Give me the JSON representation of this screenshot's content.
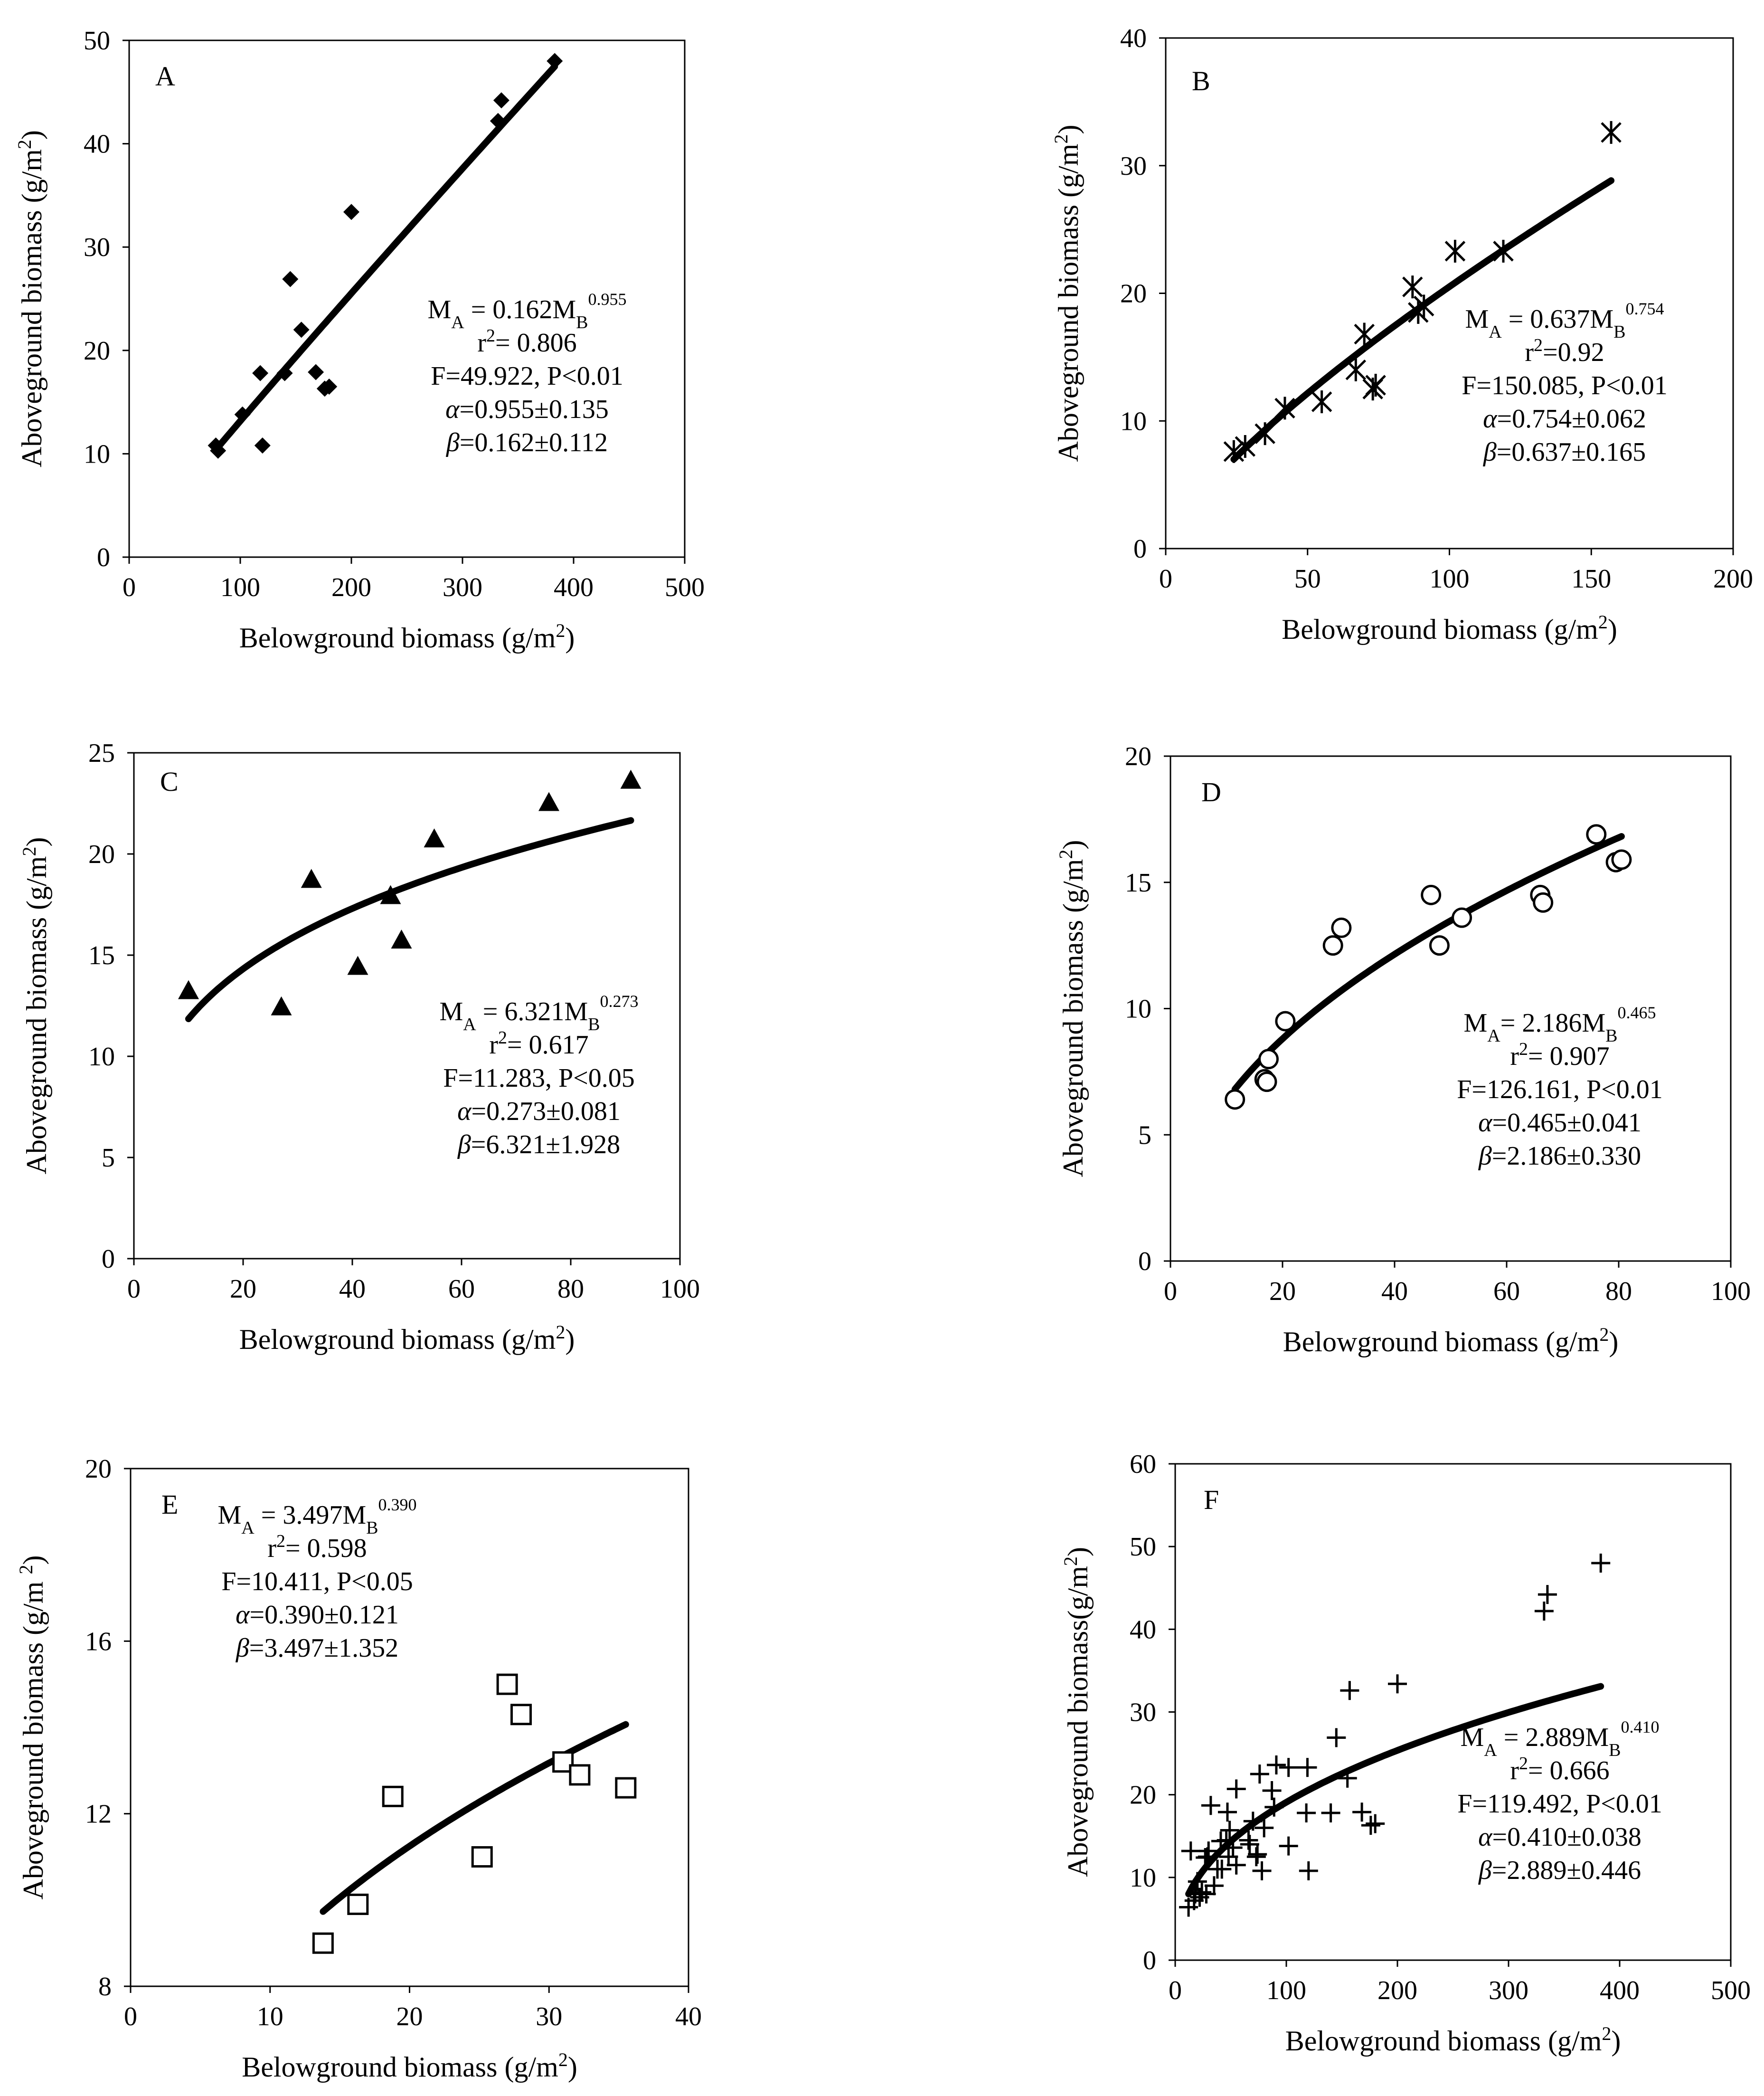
{
  "chart_data": [
    {
      "id": "A",
      "type": "scatter",
      "marker": "diamond",
      "xlabel": "Belowground biomass (g/m2)",
      "xlabel_main": "Belowground biomass (g/m",
      "xlabel_sup": "2",
      "xlabel_end": ")",
      "ylabel": "Aboveground biomass (g/m2)",
      "ylabel_main": "Aboveground biomass (g/m",
      "ylabel_sup": "2",
      "ylabel_end": ")",
      "xlim": [
        0,
        500
      ],
      "ylim": [
        0,
        50
      ],
      "xticks": [
        0,
        100,
        200,
        300,
        400,
        500
      ],
      "yticks": [
        0,
        10,
        20,
        30,
        40,
        50
      ],
      "points": [
        [
          78,
          10.8
        ],
        [
          80,
          10.3
        ],
        [
          102,
          13.8
        ],
        [
          118,
          17.8
        ],
        [
          120,
          10.8
        ],
        [
          140,
          17.8
        ],
        [
          145,
          26.9
        ],
        [
          155,
          22.0
        ],
        [
          168,
          17.9
        ],
        [
          176,
          16.3
        ],
        [
          180,
          16.5
        ],
        [
          200,
          33.4
        ],
        [
          332,
          42.2
        ],
        [
          335,
          44.2
        ],
        [
          383,
          48.0
        ]
      ],
      "fit": {
        "a": 0.162,
        "b": 0.955,
        "x_range": [
          78,
          383
        ]
      },
      "equation": {
        "ma": "M",
        "ma_sub": "A",
        "eq": " = 0.162M",
        "mb_sub": "B",
        "exp": "0.955"
      },
      "stats": [
        "= 0.806",
        "F=49.922, P<0.01",
        "=0.955±0.135",
        "=0.162±0.112"
      ],
      "r2_prefix": "r",
      "r2_sup": "2",
      "alpha_sym": "α",
      "beta_sym": "β"
    },
    {
      "id": "B",
      "type": "scatter",
      "marker": "asterisk",
      "xlabel": "Belowground biomass (g/m2)",
      "xlabel_main": "Belowground biomass (g/m",
      "xlabel_sup": "2",
      "xlabel_end": ")",
      "ylabel": "Aboveground biomass (g/m2)",
      "ylabel_main": "Aboveground biomass (g/m",
      "ylabel_sup": "2",
      "ylabel_end": ")",
      "xlim": [
        0,
        200
      ],
      "ylim": [
        0,
        40
      ],
      "xticks": [
        0,
        50,
        100,
        150,
        200
      ],
      "yticks": [
        0,
        10,
        20,
        30,
        40
      ],
      "points": [
        [
          24,
          7.6
        ],
        [
          28,
          8.0
        ],
        [
          35,
          9.0
        ],
        [
          42,
          11.0
        ],
        [
          55,
          11.5
        ],
        [
          67,
          14.0
        ],
        [
          70,
          16.8
        ],
        [
          73,
          12.5
        ],
        [
          74,
          12.8
        ],
        [
          87,
          20.5
        ],
        [
          89,
          18.5
        ],
        [
          91,
          19.0
        ],
        [
          102,
          23.3
        ],
        [
          119,
          23.3
        ],
        [
          157,
          32.6
        ]
      ],
      "fit": {
        "a": 0.637,
        "b": 0.754,
        "x_range": [
          24,
          157
        ]
      },
      "equation": {
        "ma": "M",
        "ma_sub": "A",
        "eq": " = 0.637M",
        "mb_sub": "B",
        "exp": "0.754"
      },
      "stats": [
        "=0.92",
        "F=150.085, P<0.01",
        "=0.754±0.062",
        "=0.637±0.165"
      ],
      "r2_prefix": "r",
      "r2_sup": "2",
      "alpha_sym": "α",
      "beta_sym": "β"
    },
    {
      "id": "C",
      "type": "scatter",
      "marker": "triangle",
      "xlabel": "Belowground biomass (g/m2)",
      "xlabel_main": "Belowground biomass (g/m",
      "xlabel_sup": "2",
      "xlabel_end": ")",
      "ylabel": "Aboveground biomass (g/m2)",
      "ylabel_main": "Aboveground biomass (g/m",
      "ylabel_sup": "2",
      "ylabel_end": ")",
      "xlim": [
        0,
        100
      ],
      "ylim": [
        0,
        25
      ],
      "xticks": [
        0,
        20,
        40,
        60,
        80,
        100
      ],
      "yticks": [
        0,
        5,
        10,
        15,
        20,
        25
      ],
      "points": [
        [
          10,
          13.2
        ],
        [
          27,
          12.4
        ],
        [
          32.5,
          18.7
        ],
        [
          41,
          14.4
        ],
        [
          47,
          17.9
        ],
        [
          49,
          15.7
        ],
        [
          55,
          20.7
        ],
        [
          76,
          22.5
        ],
        [
          91,
          23.6
        ]
      ],
      "fit": {
        "a": 6.321,
        "b": 0.273,
        "x_range": [
          10,
          91
        ]
      },
      "equation": {
        "ma": "M",
        "ma_sub": "A",
        "eq": " = 6.321M",
        "mb_sub": "B",
        "exp": "0.273"
      },
      "stats": [
        "= 0.617",
        "F=11.283, P<0.05",
        "=0.273±0.081",
        "=6.321±1.928"
      ],
      "r2_prefix": "r",
      "r2_sup": "2",
      "alpha_sym": "α",
      "beta_sym": "β"
    },
    {
      "id": "D",
      "type": "scatter",
      "marker": "circle",
      "xlabel": "Belowground biomass (g/m2)",
      "xlabel_main": "Belowground biomass (g/m",
      "xlabel_sup": "2",
      "xlabel_end": ")",
      "ylabel": "Aboveground biomass (g/m2)",
      "ylabel_main": "Aboveground biomass (g/m",
      "ylabel_sup": "2",
      "ylabel_end": ")",
      "xlim": [
        0,
        100
      ],
      "ylim": [
        0,
        20
      ],
      "xticks": [
        0,
        20,
        40,
        60,
        80,
        100
      ],
      "yticks": [
        0,
        5,
        10,
        15,
        20
      ],
      "points": [
        [
          11.5,
          6.4
        ],
        [
          16.8,
          7.2
        ],
        [
          17.2,
          7.1
        ],
        [
          17.5,
          8.0
        ],
        [
          20.5,
          9.5
        ],
        [
          29,
          12.5
        ],
        [
          30.5,
          13.2
        ],
        [
          46.5,
          14.5
        ],
        [
          48,
          12.5
        ],
        [
          52,
          13.6
        ],
        [
          66,
          14.5
        ],
        [
          66.5,
          14.2
        ],
        [
          76,
          16.9
        ],
        [
          79.5,
          15.8
        ],
        [
          80.5,
          15.9
        ]
      ],
      "fit": {
        "a": 2.186,
        "b": 0.465,
        "x_range": [
          11.5,
          80.5
        ]
      },
      "equation": {
        "ma": "M",
        "ma_sub": "A",
        "eq": "= 2.186M",
        "mb_sub": "B",
        "exp": "0.465"
      },
      "stats": [
        "= 0.907",
        "F=126.161, P<0.01",
        "=0.465±0.041",
        "=2.186±0.330"
      ],
      "r2_prefix": "r",
      "r2_sup": "2",
      "alpha_sym": "α",
      "beta_sym": "β"
    },
    {
      "id": "E",
      "type": "scatter",
      "marker": "square",
      "xlabel": "Belowground biomass (g/m2)",
      "xlabel_main": "Belowground biomass (g/m",
      "xlabel_sup": "2",
      "xlabel_end": ")",
      "ylabel": "Aboveground biomass (g/m 2)",
      "ylabel_main": "Aboveground biomass (g/m ",
      "ylabel_sup": "2",
      "ylabel_end": ")",
      "xlim": [
        0,
        40
      ],
      "ylim": [
        8,
        20
      ],
      "xticks": [
        0,
        10,
        20,
        30,
        40
      ],
      "yticks": [
        8,
        12,
        16,
        20
      ],
      "points": [
        [
          13.8,
          9.0
        ],
        [
          16.3,
          9.9
        ],
        [
          18.8,
          12.4
        ],
        [
          25.2,
          11.0
        ],
        [
          27,
          15.0
        ],
        [
          28,
          14.3
        ],
        [
          31,
          13.2
        ],
        [
          32.2,
          12.9
        ],
        [
          35.5,
          12.6
        ]
      ],
      "fit": {
        "a": 3.497,
        "b": 0.39,
        "x_range": [
          13.8,
          35.5
        ]
      },
      "equation": {
        "ma": "M",
        "ma_sub": "A",
        "eq": " = 3.497M",
        "mb_sub": "B",
        "exp": "0.390"
      },
      "stats": [
        "= 0.598",
        "F=10.411, P<0.05",
        "=0.390±0.121",
        "=3.497±1.352"
      ],
      "r2_prefix": "r",
      "r2_sup": "2",
      "alpha_sym": "α",
      "beta_sym": "β"
    },
    {
      "id": "F",
      "type": "scatter",
      "marker": "plus",
      "xlabel": "Belowground biomass (g/m2)",
      "xlabel_main": "Belowground biomass (g/m",
      "xlabel_sup": "2",
      "xlabel_end": ")",
      "ylabel": "Aboveground biomass(g/m2)",
      "ylabel_main": "Aboveground biomass(g/m",
      "ylabel_sup": "2",
      "ylabel_end": ")",
      "xlim": [
        0,
        500
      ],
      "ylim": [
        0,
        60
      ],
      "xticks": [
        0,
        100,
        200,
        300,
        400,
        500
      ],
      "yticks": [
        0,
        10,
        20,
        30,
        40,
        50,
        60
      ],
      "points": [
        [
          12,
          6.4
        ],
        [
          14,
          13.2
        ],
        [
          17,
          7.2
        ],
        [
          18,
          8.0
        ],
        [
          20,
          9.5
        ],
        [
          22,
          7.6
        ],
        [
          24,
          8.2
        ],
        [
          27,
          12.4
        ],
        [
          28,
          8.0
        ],
        [
          29,
          12.5
        ],
        [
          30,
          13.2
        ],
        [
          32,
          18.7
        ],
        [
          35,
          9.0
        ],
        [
          38,
          11.0
        ],
        [
          41,
          14.4
        ],
        [
          42,
          11.0
        ],
        [
          46,
          14.5
        ],
        [
          47,
          17.9
        ],
        [
          48,
          12.5
        ],
        [
          49,
          15.7
        ],
        [
          52,
          13.6
        ],
        [
          55,
          20.7
        ],
        [
          55,
          11.5
        ],
        [
          66,
          14.5
        ],
        [
          67,
          14.0
        ],
        [
          70,
          16.8
        ],
        [
          73,
          12.5
        ],
        [
          74,
          12.8
        ],
        [
          76,
          22.5
        ],
        [
          78,
          10.8
        ],
        [
          80,
          16.0
        ],
        [
          87,
          20.5
        ],
        [
          89,
          18.5
        ],
        [
          91,
          23.6
        ],
        [
          102,
          13.8
        ],
        [
          102,
          23.3
        ],
        [
          118,
          17.8
        ],
        [
          119,
          23.3
        ],
        [
          120,
          10.8
        ],
        [
          140,
          17.8
        ],
        [
          145,
          26.9
        ],
        [
          155,
          22.0
        ],
        [
          157,
          32.6
        ],
        [
          168,
          17.9
        ],
        [
          176,
          16.3
        ],
        [
          180,
          16.5
        ],
        [
          200,
          33.4
        ],
        [
          332,
          42.2
        ],
        [
          335,
          44.2
        ],
        [
          383,
          48.0
        ]
      ],
      "fit": {
        "a": 2.889,
        "b": 0.41,
        "x_range": [
          12,
          383
        ]
      },
      "equation": {
        "ma": "M",
        "ma_sub": "A",
        "eq": " = 2.889M",
        "mb_sub": "B",
        "exp": "0.410"
      },
      "stats": [
        "= 0.666",
        "F=119.492, P<0.01",
        "=0.410±0.038",
        "=2.889±0.446"
      ],
      "r2_prefix": "r",
      "r2_sup": "2",
      "alpha_sym": "α",
      "beta_sym": "β"
    }
  ]
}
